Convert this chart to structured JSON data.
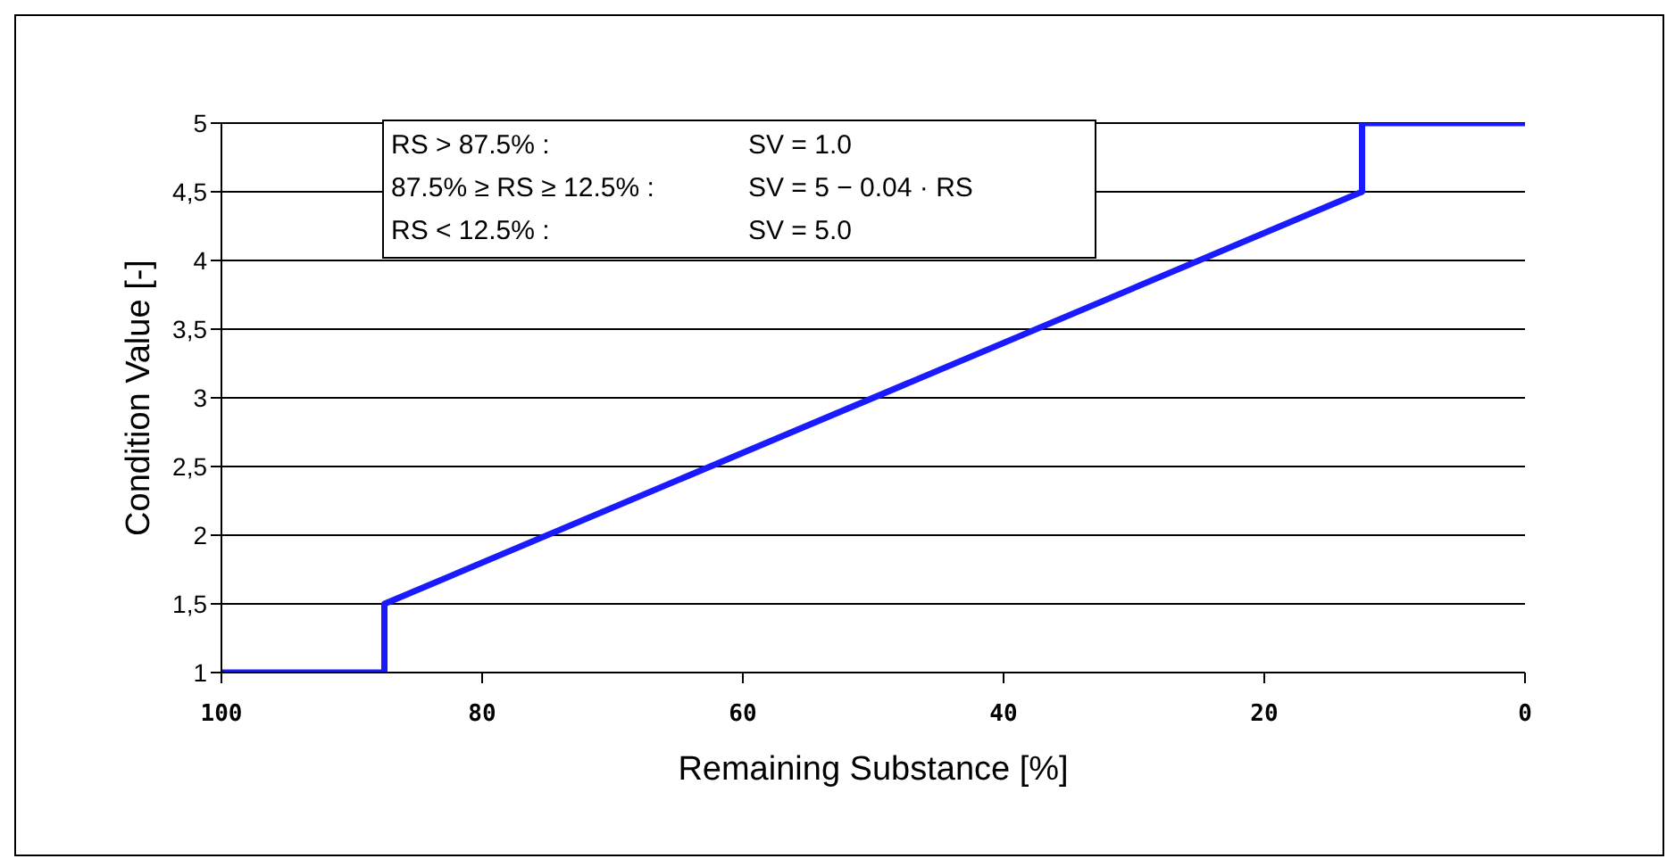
{
  "chart_data": {
    "type": "line",
    "xlabel": "Remaining Substance [%]",
    "ylabel": "Condition Value [-]",
    "x": [
      100,
      87.5,
      87.5,
      12.5,
      12.5,
      0
    ],
    "series": [
      {
        "color": "#1a1aff",
        "values": [
          1,
          1,
          1.5,
          4.5,
          5,
          5
        ]
      }
    ],
    "xlim": [
      100,
      0
    ],
    "xticks": [
      100,
      80,
      60,
      40,
      20,
      0
    ],
    "ylim": [
      1,
      5
    ],
    "yticks": [
      1,
      {
        "value": 1.5,
        "label": "1,5"
      },
      2,
      {
        "value": 2.5,
        "label": "2,5"
      },
      3,
      {
        "value": 3.5,
        "label": "3,5"
      },
      4,
      {
        "value": 4.5,
        "label": "4,5"
      },
      5
    ],
    "grid": "y",
    "legend": false,
    "marker": "none",
    "line_style": "solid",
    "annotations": [
      "RS > 87.5% :",
      "SV = 1.0",
      "87.5% ≥ RS ≥ 12.5% :",
      "SV = 5 − 0.04 · RS",
      "RS < 12.5% :",
      "SV = 5.0"
    ]
  }
}
